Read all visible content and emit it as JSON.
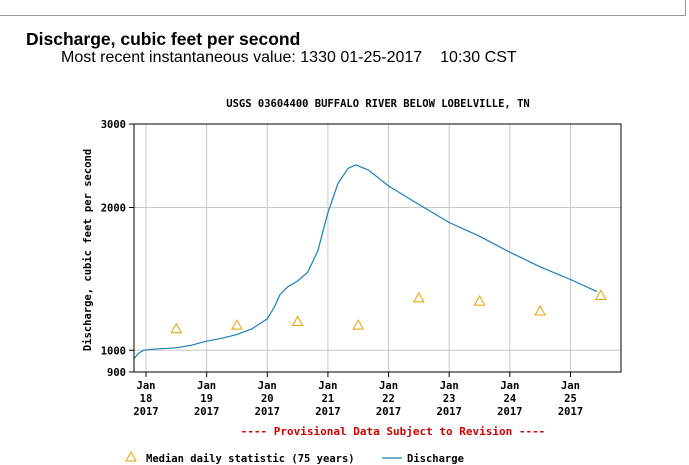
{
  "header": {
    "title": "Discharge, cubic feet per second",
    "recent_label": "Most recent instantaneous value:",
    "recent_value": "1330",
    "recent_date": "01-25-2017",
    "recent_time": "10:30 CST"
  },
  "chart_data": {
    "type": "line",
    "title": "USGS 03604400 BUFFALO RIVER BELOW LOBELVILLE, TN",
    "ylabel": "Discharge, cubic feet per second",
    "xlabel": "",
    "yscale": "log",
    "ylim": [
      900,
      3000
    ],
    "xlim": [
      "2017-01-17T19:15",
      "2017-01-25T20:00"
    ],
    "y_ticks": [
      {
        "value": 900,
        "label": "900"
      },
      {
        "value": 1000,
        "label": "1000"
      },
      {
        "value": 2000,
        "label": "2000"
      },
      {
        "value": 3000,
        "label": "3000"
      }
    ],
    "x_ticks": [
      {
        "date": "2017-01-18",
        "line1": "Jan",
        "line2": "18",
        "line3": "2017"
      },
      {
        "date": "2017-01-19",
        "line1": "Jan",
        "line2": "19",
        "line3": "2017"
      },
      {
        "date": "2017-01-20",
        "line1": "Jan",
        "line2": "20",
        "line3": "2017"
      },
      {
        "date": "2017-01-21",
        "line1": "Jan",
        "line2": "21",
        "line3": "2017"
      },
      {
        "date": "2017-01-22",
        "line1": "Jan",
        "line2": "22",
        "line3": "2017"
      },
      {
        "date": "2017-01-23",
        "line1": "Jan",
        "line2": "23",
        "line3": "2017"
      },
      {
        "date": "2017-01-24",
        "line1": "Jan",
        "line2": "24",
        "line3": "2017"
      },
      {
        "date": "2017-01-25",
        "line1": "Jan",
        "line2": "25",
        "line3": "2017"
      }
    ],
    "grid": true,
    "series": [
      {
        "name": "Discharge",
        "color": "#1a7fb5",
        "points": [
          {
            "x": "2017-01-17T19:15",
            "y": 960
          },
          {
            "x": "2017-01-17T21:00",
            "y": 985
          },
          {
            "x": "2017-01-17T23:00",
            "y": 1000
          },
          {
            "x": "2017-01-18T02:00",
            "y": 1005
          },
          {
            "x": "2017-01-18T06:00",
            "y": 1008
          },
          {
            "x": "2017-01-18T12:00",
            "y": 1012
          },
          {
            "x": "2017-01-18T18:00",
            "y": 1025
          },
          {
            "x": "2017-01-19T00:00",
            "y": 1045
          },
          {
            "x": "2017-01-19T06:00",
            "y": 1060
          },
          {
            "x": "2017-01-19T12:00",
            "y": 1080
          },
          {
            "x": "2017-01-19T18:00",
            "y": 1110
          },
          {
            "x": "2017-01-20T00:00",
            "y": 1165
          },
          {
            "x": "2017-01-20T03:00",
            "y": 1240
          },
          {
            "x": "2017-01-20T05:00",
            "y": 1310
          },
          {
            "x": "2017-01-20T08:00",
            "y": 1360
          },
          {
            "x": "2017-01-20T12:00",
            "y": 1400
          },
          {
            "x": "2017-01-20T16:00",
            "y": 1460
          },
          {
            "x": "2017-01-20T20:00",
            "y": 1620
          },
          {
            "x": "2017-01-21T00:00",
            "y": 1950
          },
          {
            "x": "2017-01-21T04:00",
            "y": 2250
          },
          {
            "x": "2017-01-21T08:00",
            "y": 2420
          },
          {
            "x": "2017-01-21T11:00",
            "y": 2460
          },
          {
            "x": "2017-01-21T16:00",
            "y": 2400
          },
          {
            "x": "2017-01-22T00:00",
            "y": 2220
          },
          {
            "x": "2017-01-22T12:00",
            "y": 2030
          },
          {
            "x": "2017-01-23T00:00",
            "y": 1860
          },
          {
            "x": "2017-01-23T12:00",
            "y": 1740
          },
          {
            "x": "2017-01-24T00:00",
            "y": 1610
          },
          {
            "x": "2017-01-24T12:00",
            "y": 1500
          },
          {
            "x": "2017-01-25T00:00",
            "y": 1410
          },
          {
            "x": "2017-01-25T10:30",
            "y": 1330
          }
        ]
      },
      {
        "name": "Median daily statistic (75 years)",
        "color": "#e8a000",
        "marker": "triangle",
        "points": [
          {
            "x": "2017-01-18T12:00",
            "y": 1110
          },
          {
            "x": "2017-01-19T12:00",
            "y": 1130
          },
          {
            "x": "2017-01-20T12:00",
            "y": 1150
          },
          {
            "x": "2017-01-21T12:00",
            "y": 1130
          },
          {
            "x": "2017-01-22T12:00",
            "y": 1290
          },
          {
            "x": "2017-01-23T12:00",
            "y": 1270
          },
          {
            "x": "2017-01-24T12:00",
            "y": 1210
          },
          {
            "x": "2017-01-25T12:00",
            "y": 1305
          }
        ]
      }
    ],
    "annotation": "---- Provisional Data Subject to Revision ----",
    "legend": {
      "placement": "bottom",
      "median_label": "Median daily statistic (75 years)",
      "discharge_label": "Discharge"
    }
  }
}
